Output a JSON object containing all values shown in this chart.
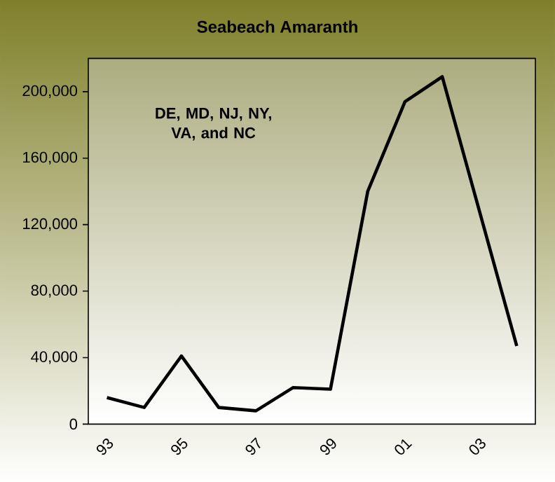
{
  "chart_data": {
    "type": "line",
    "title": "Seabeach Amaranth",
    "categories": [
      "93",
      null,
      "95",
      null,
      "97",
      null,
      "99",
      null,
      "01",
      null,
      "03",
      null
    ],
    "series": [
      {
        "color": "#000000",
        "values": [
          16000,
          10000,
          41000,
          10000,
          8000,
          22000,
          21000,
          140000,
          194000,
          209000,
          128000,
          47000
        ]
      }
    ],
    "ylim": [
      0,
      220000
    ],
    "yticks": [
      0,
      {
        "value": 40000,
        "label": "40,000"
      },
      {
        "value": 80000,
        "label": "80,000"
      },
      {
        "value": 120000,
        "label": "120,000"
      },
      {
        "value": 160000,
        "label": "160,000"
      },
      {
        "value": 200000,
        "label": "200,000"
      }
    ],
    "annotations": [
      "DE, MD, NJ, NY, VA, and NC"
    ],
    "grid": false,
    "marker": "none",
    "line_style": "solid"
  }
}
